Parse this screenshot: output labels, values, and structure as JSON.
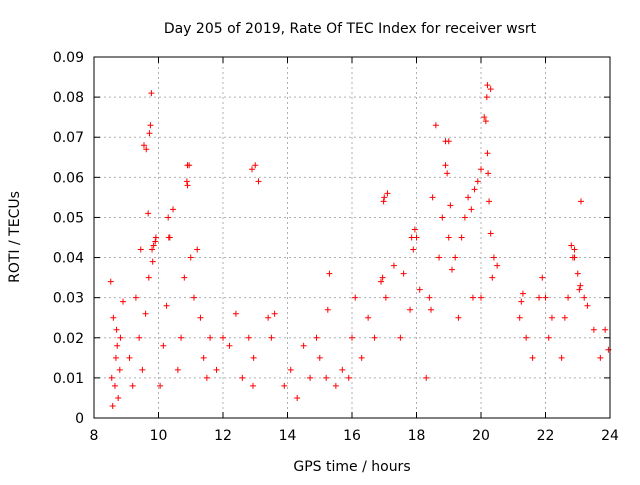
{
  "chart_data": {
    "type": "scatter",
    "title": "Day 205 of 2019, Rate Of TEC Index for receiver wsrt",
    "xlabel": "GPS time / hours",
    "ylabel": "ROTI / TECUs",
    "xlim": [
      8,
      24
    ],
    "ylim": [
      0,
      0.09
    ],
    "x_ticks": [
      "8",
      "10",
      "12",
      "14",
      "16",
      "18",
      "20",
      "22",
      "24"
    ],
    "y_ticks": [
      "0",
      "0.01",
      "0.02",
      "0.03",
      "0.04",
      "0.05",
      "0.06",
      "0.07",
      "0.08",
      "0.09"
    ],
    "grid": true,
    "marker": "+",
    "series_color": "#ff0000",
    "series": [
      {
        "name": "ROTI",
        "x": [
          8.52,
          8.6,
          8.68,
          8.75,
          8.82,
          8.9,
          8.55,
          8.65,
          8.72,
          8.8,
          8.58,
          8.7,
          9.1,
          9.2,
          9.3,
          9.4,
          9.5,
          9.6,
          9.7,
          9.8,
          9.9,
          9.75,
          9.78,
          9.72,
          9.85,
          9.55,
          9.62,
          9.45,
          9.68,
          9.82,
          9.92,
          10.05,
          10.15,
          10.25,
          10.35,
          10.45,
          10.6,
          10.7,
          10.8,
          10.9,
          11.0,
          11.1,
          11.2,
          11.3,
          11.4,
          11.5,
          11.6,
          10.9,
          10.95,
          10.88,
          10.3,
          10.32,
          11.8,
          12.0,
          12.2,
          12.4,
          12.6,
          12.8,
          12.9,
          13.0,
          13.1,
          12.95,
          12.93,
          13.4,
          13.5,
          13.6,
          13.9,
          14.1,
          14.3,
          14.5,
          14.7,
          14.9,
          15.0,
          15.2,
          15.3,
          15.5,
          15.7,
          15.25,
          15.9,
          16.0,
          16.1,
          16.3,
          16.5,
          16.7,
          16.9,
          17.0,
          17.1,
          17.3,
          17.5,
          16.95,
          16.98,
          17.05,
          17.6,
          17.8,
          17.9,
          18.0,
          18.1,
          17.85,
          17.95,
          18.3,
          18.4,
          18.5,
          18.6,
          18.7,
          18.8,
          18.9,
          19.0,
          19.1,
          19.2,
          19.3,
          18.45,
          18.9,
          18.95,
          19.0,
          19.05,
          19.4,
          19.5,
          19.6,
          19.7,
          19.8,
          19.9,
          20.0,
          20.1,
          20.2,
          20.3,
          20.4,
          20.5,
          20.15,
          20.18,
          20.2,
          20.22,
          20.25,
          20.3,
          20.35,
          20.0,
          19.75,
          21.2,
          21.4,
          21.6,
          21.8,
          21.9,
          22.0,
          22.1,
          22.2,
          21.3,
          21.25,
          22.5,
          22.6,
          22.7,
          22.8,
          22.9,
          23.0,
          23.1,
          23.2,
          23.3,
          23.5,
          23.7,
          23.85,
          23.95,
          22.85,
          22.9,
          23.05,
          23.08
        ],
        "y": [
          0.034,
          0.025,
          0.015,
          0.005,
          0.02,
          0.029,
          0.01,
          0.008,
          0.018,
          0.012,
          0.003,
          0.022,
          0.015,
          0.008,
          0.03,
          0.02,
          0.012,
          0.026,
          0.035,
          0.042,
          0.044,
          0.073,
          0.081,
          0.071,
          0.043,
          0.068,
          0.067,
          0.042,
          0.051,
          0.039,
          0.045,
          0.008,
          0.018,
          0.028,
          0.045,
          0.052,
          0.012,
          0.02,
          0.035,
          0.063,
          0.04,
          0.03,
          0.042,
          0.025,
          0.015,
          0.01,
          0.02,
          0.058,
          0.063,
          0.059,
          0.05,
          0.045,
          0.012,
          0.02,
          0.018,
          0.026,
          0.01,
          0.02,
          0.062,
          0.063,
          0.059,
          0.015,
          0.008,
          0.025,
          0.02,
          0.026,
          0.008,
          0.012,
          0.005,
          0.018,
          0.01,
          0.02,
          0.015,
          0.01,
          0.036,
          0.008,
          0.012,
          0.027,
          0.01,
          0.02,
          0.03,
          0.015,
          0.025,
          0.02,
          0.034,
          0.055,
          0.056,
          0.038,
          0.02,
          0.035,
          0.054,
          0.03,
          0.036,
          0.027,
          0.042,
          0.045,
          0.032,
          0.045,
          0.047,
          0.01,
          0.03,
          0.055,
          0.073,
          0.04,
          0.05,
          0.069,
          0.045,
          0.037,
          0.04,
          0.025,
          0.027,
          0.063,
          0.061,
          0.069,
          0.053,
          0.045,
          0.05,
          0.055,
          0.052,
          0.057,
          0.059,
          0.062,
          0.075,
          0.083,
          0.082,
          0.04,
          0.038,
          0.074,
          0.08,
          0.066,
          0.061,
          0.054,
          0.046,
          0.035,
          0.03,
          0.03,
          0.025,
          0.02,
          0.015,
          0.03,
          0.035,
          0.03,
          0.02,
          0.025,
          0.031,
          0.029,
          0.015,
          0.025,
          0.03,
          0.043,
          0.04,
          0.036,
          0.054,
          0.03,
          0.028,
          0.022,
          0.015,
          0.022,
          0.017,
          0.04,
          0.042,
          0.032,
          0.033
        ]
      }
    ]
  }
}
